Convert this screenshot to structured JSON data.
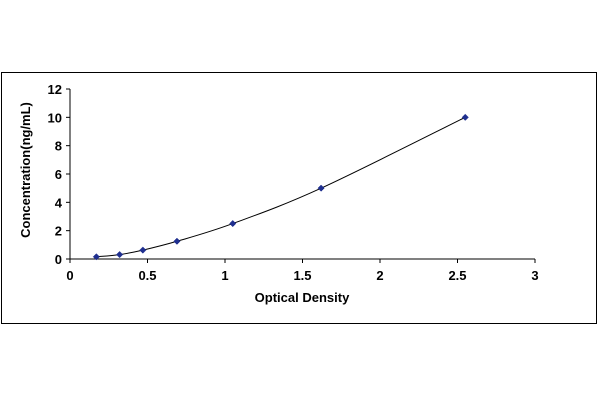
{
  "chart_data": {
    "type": "line",
    "title": "",
    "xlabel": "Optical Density",
    "ylabel": "Concentration(ng/mL)",
    "xlim": [
      0,
      3
    ],
    "ylim": [
      0,
      12
    ],
    "xticks": [
      0,
      0.5,
      1,
      1.5,
      2,
      2.5,
      3
    ],
    "xtick_labels": [
      "0",
      "0.5",
      "1",
      "1.5",
      "2",
      "2.5",
      "3"
    ],
    "yticks": [
      0,
      2,
      4,
      6,
      8,
      10,
      12
    ],
    "ytick_labels": [
      "0",
      "2",
      "4",
      "6",
      "8",
      "10",
      "12"
    ],
    "grid": false,
    "legend": "none",
    "series": [
      {
        "marker": "diamond",
        "marker_color": "#1f2f8f",
        "line_color": "#000000",
        "x": [
          0.17,
          0.32,
          0.47,
          0.69,
          1.05,
          1.62,
          2.55
        ],
        "y": [
          0.156,
          0.312,
          0.625,
          1.25,
          2.5,
          5,
          10
        ]
      }
    ]
  }
}
